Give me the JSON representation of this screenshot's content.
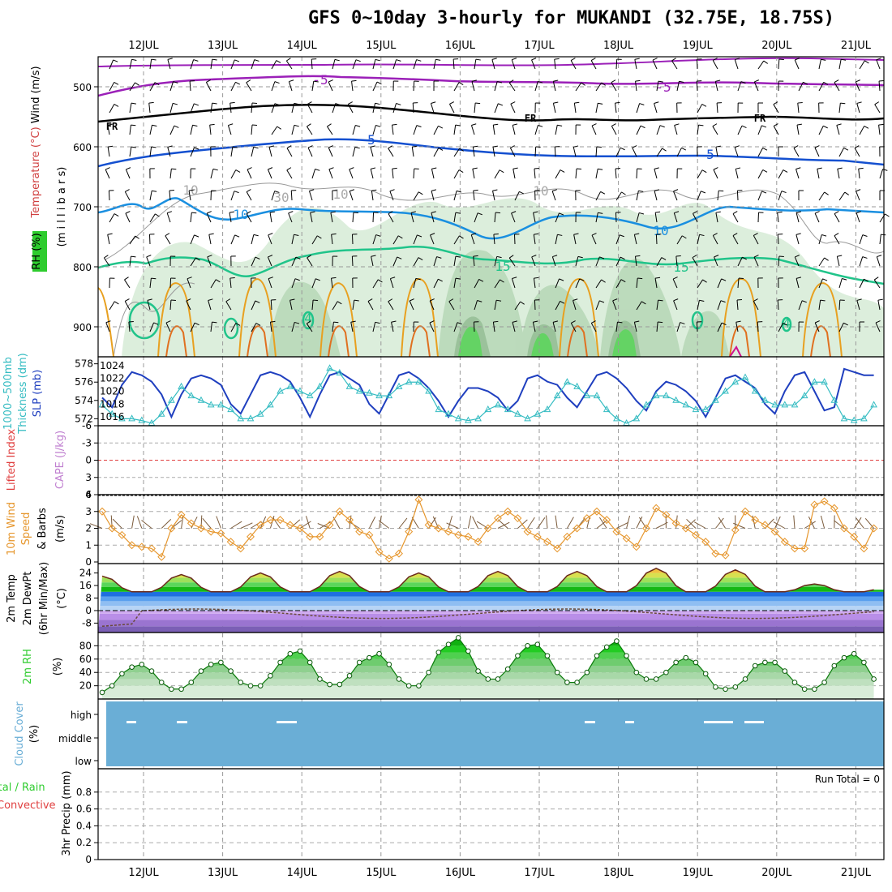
{
  "title": "GFS 0~10day 3-hourly for MUKANDI (32.75E, 18.75S)",
  "dates": [
    "12JUL",
    "13JUL",
    "14JUL",
    "15JUL",
    "16JUL",
    "17JUL",
    "18JUL",
    "19JUL",
    "20JUL",
    "21JUL"
  ],
  "colors": {
    "background": "#ffffff",
    "cloud": "#6aaed6",
    "slp": "#1f3fbf",
    "thickness": "#35bcc2",
    "wind_speed": "#e6962c",
    "wind_barb": "#7a5a3a",
    "rh_fill": "#2ecc2e"
  },
  "panels": {
    "upper": {
      "ylabels": [
        "Wind (m/s)",
        "Temperature (°C)",
        "RH (%)",
        "(m i l l i b a r s)"
      ],
      "yticks": [
        "500",
        "600",
        "700",
        "800",
        "900"
      ],
      "contour_labels": [
        "-5",
        "-5",
        "FR",
        "FR",
        "FR",
        "5",
        "5",
        "10",
        "10",
        "10",
        "15",
        "15",
        "30",
        "10",
        "10",
        "4",
        "4"
      ]
    },
    "slp": {
      "ylabels": [
        "1000~500mb",
        "Thickness (dm)",
        "SLP (mb)"
      ],
      "left_ticks": [
        "578",
        "576",
        "574",
        "572"
      ],
      "right_ticks": [
        "1024",
        "1022",
        "1020",
        "1018",
        "1016"
      ]
    },
    "li": {
      "ylabels": [
        "Lifted Index",
        "CAPE (J/kg)"
      ],
      "yticks": [
        "-6",
        "-3",
        "0",
        "3",
        "6"
      ]
    },
    "wind10": {
      "ylabels": [
        "10m Wind",
        "Speed",
        "& Barbs",
        "(m/s)"
      ],
      "yticks": [
        "4",
        "3",
        "2",
        "1",
        "0"
      ]
    },
    "temp2m": {
      "ylabels": [
        "2m Temp",
        "2m DewPt",
        "(6hr Min/Max)",
        "(°C)"
      ],
      "yticks": [
        "24",
        "16",
        "8",
        "0",
        "-8"
      ]
    },
    "rh2m": {
      "ylabels": [
        "2m RH",
        "(%)"
      ],
      "yticks": [
        "80",
        "60",
        "40",
        "20"
      ]
    },
    "cloud": {
      "ylabels": [
        "Cloud Cover",
        "(%)"
      ],
      "levels": [
        "high",
        "middle",
        "low"
      ]
    },
    "precip": {
      "ylabels": [
        "Total / Rain",
        "Convective",
        "3hr Precip (mm)"
      ],
      "yticks": [
        "0.8",
        "0.6",
        "0.4",
        "0.2",
        "0"
      ],
      "run_total": "Run Total = 0"
    }
  },
  "chart_data": [
    {
      "type": "line",
      "name": "SLP",
      "unit": "mb",
      "ylim": [
        1015,
        1025
      ],
      "x": [
        "11JUL 12Z",
        "11JUL 15Z",
        "11JUL 18Z",
        "11JUL 21Z",
        "12JUL 00Z",
        "12JUL 03Z",
        "12JUL 06Z",
        "12JUL 09Z",
        "12JUL 12Z",
        "12JUL 15Z",
        "12JUL 18Z",
        "12JUL 21Z",
        "13JUL 00Z",
        "13JUL 03Z",
        "13JUL 06Z",
        "13JUL 09Z",
        "13JUL 12Z",
        "13JUL 15Z",
        "13JUL 18Z",
        "13JUL 21Z",
        "14JUL 00Z",
        "14JUL 03Z",
        "14JUL 06Z",
        "14JUL 09Z",
        "14JUL 12Z",
        "14JUL 15Z",
        "14JUL 18Z",
        "14JUL 21Z",
        "15JUL 00Z",
        "15JUL 03Z",
        "15JUL 06Z",
        "15JUL 09Z",
        "15JUL 12Z",
        "15JUL 15Z",
        "15JUL 18Z",
        "15JUL 21Z",
        "16JUL 00Z",
        "16JUL 03Z",
        "16JUL 06Z",
        "16JUL 09Z",
        "16JUL 12Z",
        "16JUL 15Z",
        "16JUL 18Z",
        "16JUL 21Z",
        "17JUL 00Z",
        "17JUL 03Z",
        "17JUL 06Z",
        "17JUL 09Z",
        "17JUL 12Z",
        "17JUL 15Z",
        "17JUL 18Z",
        "17JUL 21Z",
        "18JUL 00Z",
        "18JUL 03Z",
        "18JUL 06Z",
        "18JUL 09Z",
        "18JUL 12Z",
        "18JUL 15Z",
        "18JUL 18Z",
        "18JUL 21Z",
        "19JUL 00Z",
        "19JUL 03Z",
        "19JUL 06Z",
        "19JUL 09Z",
        "19JUL 12Z",
        "19JUL 15Z",
        "19JUL 18Z",
        "19JUL 21Z",
        "20JUL 00Z",
        "20JUL 03Z",
        "20JUL 06Z",
        "20JUL 09Z",
        "20JUL 12Z",
        "20JUL 15Z",
        "20JUL 18Z",
        "20JUL 21Z",
        "21JUL 00Z",
        "21JUL 03Z",
        "21JUL 06Z"
      ],
      "values": [
        1019,
        1017.5,
        1021,
        1023,
        1022.5,
        1021.5,
        1019.5,
        1016,
        1019.5,
        1022,
        1022.5,
        1022,
        1021,
        1018,
        1016.5,
        1019.5,
        1022.5,
        1023,
        1022.5,
        1021.5,
        1019,
        1016,
        1019.5,
        1022.5,
        1023,
        1022,
        1021,
        1018,
        1016.5,
        1019.5,
        1022.5,
        1023,
        1022,
        1020.5,
        1018.5,
        1016,
        1018.5,
        1020.5,
        1020.5,
        1020,
        1019,
        1017,
        1018.5,
        1022,
        1022.5,
        1021.5,
        1021,
        1019,
        1017.5,
        1020,
        1022.5,
        1023,
        1022,
        1020.5,
        1018.5,
        1017,
        1020,
        1021.5,
        1021,
        1020,
        1018.5,
        1016,
        1019,
        1022,
        1022.5,
        1021.5,
        1020.5,
        1018,
        1016.5,
        1020,
        1022.5,
        1023,
        1020,
        1017,
        1017.5,
        1023.5,
        1023,
        1022.5,
        1022.5
      ]
    },
    {
      "type": "line",
      "name": "1000~500mb Thickness",
      "unit": "dm",
      "ylim": [
        571.5,
        578.5
      ],
      "values": [
        573.5,
        572.5,
        572,
        572,
        571.8,
        571.5,
        572.5,
        574,
        575.5,
        574.5,
        574,
        573.5,
        573.5,
        573,
        572,
        572,
        572.5,
        573.5,
        575,
        575.5,
        575,
        574.5,
        575.5,
        577.5,
        577,
        575.5,
        575,
        574.8,
        574.5,
        574.5,
        575.5,
        576,
        576,
        575,
        573,
        572.5,
        572,
        571.8,
        572,
        573,
        573.5,
        573,
        572.5,
        572,
        572.5,
        573,
        574.5,
        576,
        575.5,
        574.5,
        574.5,
        573,
        572,
        571.5,
        572,
        573.5,
        574.5,
        574.5,
        574,
        573.5,
        573,
        573,
        574,
        575,
        576,
        576.5,
        575,
        574,
        573.5,
        573.5,
        573.5,
        574.5,
        576,
        576,
        574,
        572,
        571.8,
        572,
        573.5
      ]
    },
    {
      "type": "line",
      "name": "10m Wind Speed",
      "unit": "m/s",
      "ylim": [
        0,
        4
      ],
      "values": [
        3,
        2,
        1.6,
        1,
        0.9,
        0.8,
        0.3,
        2,
        2.8,
        2.3,
        2,
        1.8,
        1.7,
        1.2,
        0.8,
        1.5,
        2.2,
        2.5,
        2.5,
        2.2,
        2,
        1.5,
        1.5,
        2.2,
        3,
        2.5,
        1.8,
        1.6,
        0.6,
        0.2,
        0.5,
        1.8,
        3.7,
        2.2,
        2,
        1.8,
        1.6,
        1.5,
        1.2,
        2,
        2.6,
        3,
        2.6,
        1.8,
        1.5,
        1.2,
        0.8,
        1.5,
        2,
        2.6,
        3,
        2.5,
        1.8,
        1.4,
        0.9,
        2,
        3.2,
        2.8,
        2.3,
        2,
        1.6,
        1.2,
        0.5,
        0.4,
        1.9,
        3,
        2.5,
        2.2,
        1.8,
        1.2,
        0.8,
        0.8,
        3.4,
        3.6,
        3.2,
        2,
        1.5,
        0.8,
        2
      ]
    },
    {
      "type": "area",
      "name": "2m RH",
      "unit": "%",
      "ylim": [
        0,
        100
      ],
      "values": [
        10,
        20,
        38,
        48,
        52,
        42,
        25,
        15,
        15,
        25,
        42,
        52,
        55,
        42,
        25,
        20,
        20,
        35,
        55,
        68,
        72,
        55,
        30,
        22,
        22,
        35,
        55,
        62,
        68,
        52,
        30,
        20,
        20,
        40,
        70,
        82,
        92,
        72,
        42,
        30,
        30,
        45,
        65,
        80,
        82,
        65,
        40,
        25,
        25,
        40,
        65,
        78,
        87,
        65,
        40,
        30,
        30,
        40,
        55,
        62,
        55,
        38,
        18,
        15,
        18,
        30,
        50,
        55,
        55,
        42,
        25,
        15,
        15,
        25,
        50,
        62,
        68,
        55,
        30
      ]
    }
  ]
}
